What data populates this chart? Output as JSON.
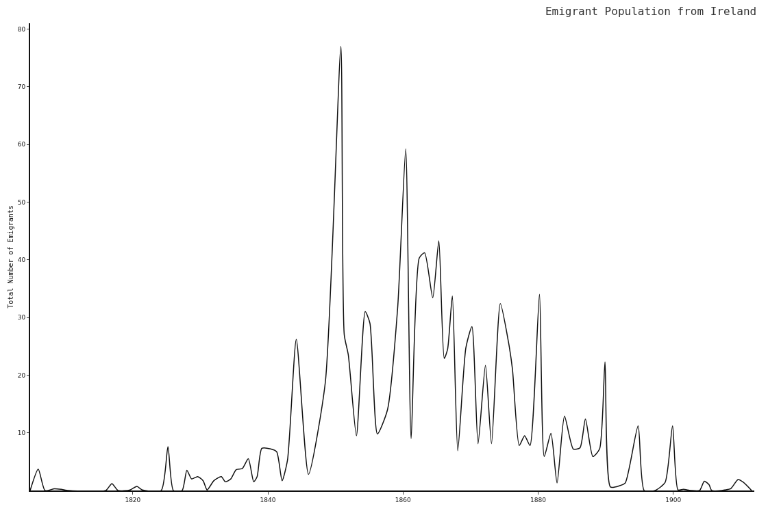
{
  "chart_data": {
    "type": "line",
    "title": "Emigrant Population from Ireland",
    "ylabel": "Total Number of Emigrants",
    "x": [
      1804.8,
      1806.0,
      1807.0,
      1808.4,
      1809.4,
      1810.5,
      1816.0,
      1816.9,
      1817.8,
      1819.6,
      1820.6,
      1821.4,
      1824.2,
      1825.2,
      1826.0,
      1827.3,
      1828.0,
      1828.7,
      1829.6,
      1830.4,
      1831.0,
      1832.0,
      1833.1,
      1833.7,
      1834.5,
      1835.3,
      1836.2,
      1837.1,
      1837.9,
      1838.4,
      1839.1,
      1840.4,
      1841.3,
      1842.1,
      1842.9,
      1844.2,
      1846.0,
      1848.5,
      1850.8,
      1851.3,
      1851.9,
      1853.1,
      1854.4,
      1855.1,
      1856.2,
      1857.7,
      1859.2,
      1860.4,
      1861.2,
      1862.4,
      1863.2,
      1864.4,
      1865.3,
      1866.1,
      1866.6,
      1867.3,
      1868.1,
      1869.3,
      1870.2,
      1871.1,
      1872.2,
      1873.1,
      1874.4,
      1875.6,
      1876.2,
      1877.2,
      1878.0,
      1878.8,
      1880.2,
      1880.9,
      1881.9,
      1882.8,
      1883.9,
      1885.2,
      1886.2,
      1887.0,
      1888.1,
      1889.1,
      1889.9,
      1890.7,
      1892.0,
      1892.9,
      1894.8,
      1895.7,
      1897.3,
      1898.8,
      1899.9,
      1900.7,
      1901.5,
      1902.6,
      1903.9,
      1904.6,
      1905.3,
      1905.7,
      1907.2,
      1907.6,
      1908.5,
      1909.6,
      1910.4,
      1911.6
    ],
    "series": [
      {
        "color": "#111111",
        "values": [
          0,
          3.7,
          0,
          0.3,
          0.2,
          0,
          0,
          1.2,
          0,
          0.1,
          0.7,
          0.1,
          0,
          7.6,
          0,
          0,
          3.5,
          2.0,
          2.4,
          1.7,
          0.1,
          1.7,
          2.4,
          1.5,
          2.0,
          3.6,
          3.8,
          5.5,
          1.5,
          2.4,
          7.3,
          7.2,
          6.7,
          1.7,
          5.3,
          26.2,
          2.8,
          18.8,
          77.0,
          27,
          23.5,
          9.5,
          31,
          29,
          9.8,
          14,
          31.6,
          59.2,
          9,
          40.3,
          41.2,
          33.4,
          43.3,
          22.9,
          24.5,
          33.7,
          6.9,
          24.7,
          28.4,
          8.1,
          21.7,
          8.1,
          32.4,
          25.8,
          21,
          7.8,
          9.5,
          7.8,
          34,
          5.9,
          9.9,
          1.3,
          12.9,
          7.2,
          7.4,
          12.4,
          5.9,
          7.2,
          22.3,
          0.6,
          0.8,
          1.3,
          11.2,
          0,
          0,
          1.4,
          11.2,
          0.1,
          0.2,
          0,
          0,
          1.6,
          1.0,
          0,
          0,
          0.1,
          0.3,
          1.9,
          1.4,
          0
        ]
      }
    ],
    "xlim": [
      1804.8,
      1912
    ],
    "xticks": [
      1820,
      1840,
      1860,
      1880,
      1900
    ],
    "ylim": [
      0,
      81
    ],
    "yticks": [
      10,
      20,
      30,
      40,
      50,
      60,
      70,
      80
    ],
    "grid": false,
    "marker": "none",
    "line_style": "solid"
  }
}
